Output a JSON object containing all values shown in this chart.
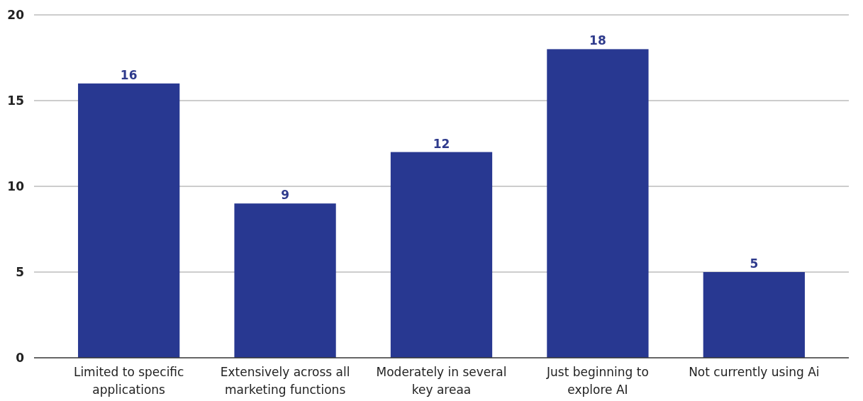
{
  "chart_data": {
    "type": "bar",
    "categories": [
      "Limited to specific applications",
      "Extensively across all marketing functions",
      "Moderately in several key areaa",
      "Just beginning to explore AI",
      "Not currently using Ai"
    ],
    "values": [
      16,
      9,
      12,
      18,
      5
    ],
    "color": "#283891",
    "ylim": [
      0,
      20
    ],
    "yticks": [
      0,
      5,
      10,
      15,
      20
    ],
    "grid": "y",
    "data_labels": true
  }
}
